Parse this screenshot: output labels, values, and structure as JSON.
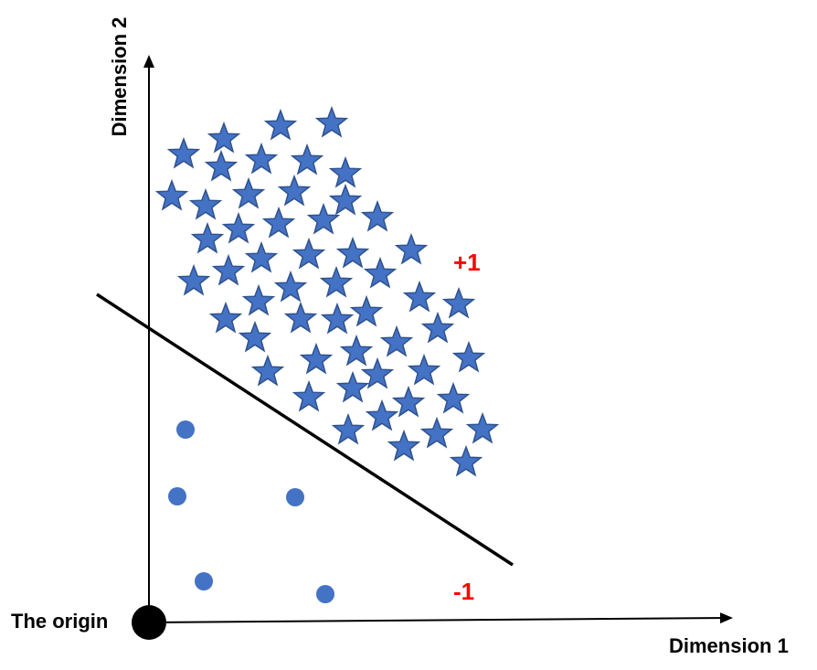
{
  "labels": {
    "dimension2": "Dimension 2",
    "dimension1": "Dimension 1",
    "origin": "The origin",
    "positive_class": "+1",
    "negative_class": "-1"
  },
  "colors": {
    "star_fill": "#4472c4",
    "star_stroke": "#2f528f",
    "circle_fill": "#4472c4",
    "class_label": "#ff0000",
    "axis": "#000000",
    "separator": "#000000"
  },
  "icons": {
    "positive_marker": "star-icon",
    "negative_marker": "circle-icon",
    "origin_marker": "filled-circle"
  }
}
